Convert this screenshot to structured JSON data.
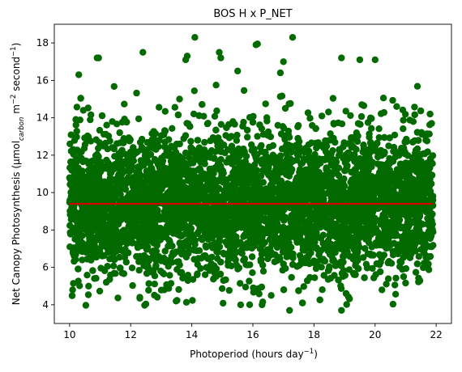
{
  "chart_data": {
    "type": "scatter",
    "title": "BOS H x P_NET",
    "xlabel": {
      "main": "Photoperiod (hours day",
      "sup": "−1",
      "close": ")"
    },
    "ylabel": {
      "part1": "Net Canopy Photosynthesis (µmol",
      "sub": "carbon",
      "part2": " m",
      "sup1": "−2",
      "part3": " second",
      "sup2": "−1",
      "part4": ")"
    },
    "xlim": [
      9.5,
      22.5
    ],
    "ylim": [
      3.0,
      19.0
    ],
    "x_ticks": [
      10,
      12,
      14,
      16,
      18,
      20,
      22
    ],
    "y_ticks": [
      4,
      6,
      8,
      10,
      12,
      14,
      16,
      18
    ],
    "x_tick_labels": [
      "10",
      "12",
      "14",
      "16",
      "18",
      "20",
      "22"
    ],
    "y_tick_labels": [
      "4",
      "6",
      "8",
      "10",
      "12",
      "14",
      "16",
      "18"
    ],
    "grid": false,
    "colors": {
      "points": "#036a00",
      "trend_line": "#d40000"
    },
    "series": [
      {
        "kind": "points",
        "x_range": [
          10.0,
          21.9
        ],
        "y_mean": 9.4,
        "y_core_range": [
          5.0,
          14.5
        ],
        "x": [
          10.3,
          10.9,
          10.95,
          12.4,
          14.1,
          14.9,
          14.95,
          16.1,
          16.15,
          17.3,
          17.0,
          13.8,
          13.85,
          15.5,
          16.9,
          18.9,
          19.5,
          20.0,
          17.2,
          18.9,
          15.6,
          16.3,
          16.6,
          10.1,
          10.2,
          10.45,
          21.8,
          21.85,
          12.3,
          11.2,
          13.1,
          13.6
        ],
        "y": [
          16.3,
          17.2,
          17.2,
          17.5,
          18.3,
          17.5,
          17.2,
          17.9,
          17.95,
          18.3,
          17.0,
          17.1,
          17.3,
          16.5,
          16.4,
          17.2,
          17.1,
          17.1,
          3.7,
          3.7,
          4.0,
          4.0,
          4.5,
          4.8,
          11.0,
          14.4,
          14.2,
          13.7,
          4.4,
          5.2,
          4.8,
          15.0
        ]
      },
      {
        "kind": "line",
        "x": [
          10.0,
          21.9
        ],
        "y": [
          9.4,
          9.4
        ]
      }
    ]
  }
}
